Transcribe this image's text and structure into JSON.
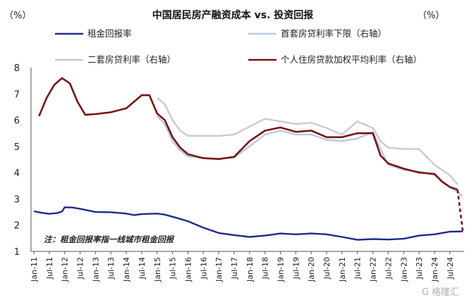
{
  "chart_data": {
    "type": "line",
    "title": "中国居民房产融资成本 vs. 投资回报",
    "left_unit": "（%）",
    "right_unit": "（%）",
    "ylim": [
      1,
      8
    ],
    "yticks": [
      1,
      2,
      3,
      4,
      5,
      6,
      7,
      8
    ],
    "xlim": [
      "2011-01",
      "2024-12"
    ],
    "xticks": [
      "Jan-11",
      "Jul-11",
      "Jan-12",
      "Jul-12",
      "Jan-13",
      "Jul-13",
      "Jan-14",
      "Jul-14",
      "Jan-15",
      "Jul-15",
      "Jan-16",
      "Jul-16",
      "Jan-17",
      "Jul-17",
      "Jan-18",
      "Jul-18",
      "Jan-19",
      "Jul-19",
      "Jan-20",
      "Jul-20",
      "Jan-21",
      "Jul-21",
      "Jan-22",
      "Jul-22",
      "Jan-23",
      "Jul-23",
      "Jan-24",
      "Jul-24"
    ],
    "note": "注：租金回报率指一线城市租金回报",
    "legend": [
      "租金回报率",
      "首套房贷利率下限（右轴）",
      "二套房贷利率（右轴）",
      "个人住房贷款加权平均利率（右轴）"
    ],
    "series": [
      {
        "name": "租金回报率",
        "color": "#1f2a8a",
        "dashed_tail": false,
        "points": [
          [
            "2011-01",
            2.53
          ],
          [
            "2011-04",
            2.47
          ],
          [
            "2011-07",
            2.43
          ],
          [
            "2011-10",
            2.46
          ],
          [
            "2011-12",
            2.52
          ],
          [
            "2012-01",
            2.68
          ],
          [
            "2012-04",
            2.67
          ],
          [
            "2012-07",
            2.62
          ],
          [
            "2012-10",
            2.56
          ],
          [
            "2013-01",
            2.5
          ],
          [
            "2013-07",
            2.49
          ],
          [
            "2014-01",
            2.44
          ],
          [
            "2014-04",
            2.38
          ],
          [
            "2014-07",
            2.42
          ],
          [
            "2015-01",
            2.44
          ],
          [
            "2015-04",
            2.4
          ],
          [
            "2015-07",
            2.32
          ],
          [
            "2016-01",
            2.15
          ],
          [
            "2016-07",
            1.9
          ],
          [
            "2017-01",
            1.7
          ],
          [
            "2017-07",
            1.62
          ],
          [
            "2018-01",
            1.55
          ],
          [
            "2018-07",
            1.6
          ],
          [
            "2019-01",
            1.68
          ],
          [
            "2019-07",
            1.65
          ],
          [
            "2020-01",
            1.68
          ],
          [
            "2020-07",
            1.65
          ],
          [
            "2021-01",
            1.55
          ],
          [
            "2021-07",
            1.44
          ],
          [
            "2022-01",
            1.47
          ],
          [
            "2022-07",
            1.45
          ],
          [
            "2023-01",
            1.48
          ],
          [
            "2023-07",
            1.6
          ],
          [
            "2024-01",
            1.65
          ],
          [
            "2024-07",
            1.75
          ],
          [
            "2024-12",
            1.76
          ]
        ]
      },
      {
        "name": "首套房贷利率下限（右轴）",
        "color": "#b9c9e4",
        "dashed_tail": false,
        "points": [
          [
            "2015-01",
            6.15
          ],
          [
            "2015-04",
            5.85
          ],
          [
            "2015-07",
            5.2
          ],
          [
            "2015-10",
            4.85
          ],
          [
            "2016-01",
            4.62
          ],
          [
            "2016-07",
            4.55
          ],
          [
            "2017-01",
            4.52
          ],
          [
            "2017-07",
            4.58
          ],
          [
            "2018-01",
            5.0
          ],
          [
            "2018-07",
            5.45
          ],
          [
            "2019-01",
            5.6
          ],
          [
            "2019-07",
            5.45
          ],
          [
            "2020-01",
            5.45
          ],
          [
            "2020-07",
            5.25
          ],
          [
            "2021-01",
            5.2
          ],
          [
            "2021-07",
            5.3
          ],
          [
            "2022-01",
            5.55
          ],
          [
            "2022-04",
            4.9
          ],
          [
            "2022-07",
            4.3
          ],
          [
            "2023-01",
            4.1
          ],
          [
            "2023-07",
            4.05
          ],
          [
            "2024-01",
            3.9
          ],
          [
            "2024-07",
            3.45
          ],
          [
            "2024-12",
            3.1
          ]
        ]
      },
      {
        "name": "二套房贷利率（右轴）",
        "color": "#c9c9d6",
        "dashed_tail": false,
        "points": [
          [
            "2015-01",
            6.85
          ],
          [
            "2015-04",
            6.6
          ],
          [
            "2015-07",
            6.0
          ],
          [
            "2015-10",
            5.6
          ],
          [
            "2016-01",
            5.4
          ],
          [
            "2016-07",
            5.4
          ],
          [
            "2017-01",
            5.4
          ],
          [
            "2017-07",
            5.45
          ],
          [
            "2018-01",
            5.75
          ],
          [
            "2018-07",
            6.05
          ],
          [
            "2019-01",
            5.95
          ],
          [
            "2019-07",
            5.85
          ],
          [
            "2020-01",
            5.9
          ],
          [
            "2020-07",
            5.7
          ],
          [
            "2021-01",
            5.45
          ],
          [
            "2021-07",
            5.95
          ],
          [
            "2022-01",
            5.7
          ],
          [
            "2022-04",
            5.2
          ],
          [
            "2022-07",
            4.95
          ],
          [
            "2023-01",
            4.9
          ],
          [
            "2023-07",
            4.9
          ],
          [
            "2024-01",
            4.3
          ],
          [
            "2024-07",
            3.9
          ],
          [
            "2024-10",
            3.55
          ]
        ]
      },
      {
        "name": "个人住房贷款加权平均利率（右轴）",
        "color": "#7a1313",
        "dashed_tail": true,
        "tail_from": "2024-10",
        "points": [
          [
            "2011-03",
            6.15
          ],
          [
            "2011-06",
            6.85
          ],
          [
            "2011-09",
            7.35
          ],
          [
            "2011-12",
            7.6
          ],
          [
            "2012-03",
            7.4
          ],
          [
            "2012-06",
            6.7
          ],
          [
            "2012-09",
            6.2
          ],
          [
            "2013-01",
            6.23
          ],
          [
            "2013-07",
            6.3
          ],
          [
            "2014-01",
            6.45
          ],
          [
            "2014-04",
            6.7
          ],
          [
            "2014-07",
            6.95
          ],
          [
            "2014-10",
            6.95
          ],
          [
            "2015-01",
            6.25
          ],
          [
            "2015-04",
            6.0
          ],
          [
            "2015-07",
            5.35
          ],
          [
            "2015-10",
            4.95
          ],
          [
            "2016-01",
            4.7
          ],
          [
            "2016-07",
            4.55
          ],
          [
            "2017-01",
            4.52
          ],
          [
            "2017-07",
            4.6
          ],
          [
            "2018-01",
            5.2
          ],
          [
            "2018-07",
            5.6
          ],
          [
            "2019-01",
            5.72
          ],
          [
            "2019-07",
            5.55
          ],
          [
            "2020-01",
            5.6
          ],
          [
            "2020-07",
            5.35
          ],
          [
            "2021-01",
            5.35
          ],
          [
            "2021-07",
            5.5
          ],
          [
            "2022-01",
            5.5
          ],
          [
            "2022-04",
            4.65
          ],
          [
            "2022-07",
            4.35
          ],
          [
            "2023-01",
            4.15
          ],
          [
            "2023-07",
            4.0
          ],
          [
            "2024-01",
            3.95
          ],
          [
            "2024-04",
            3.65
          ],
          [
            "2024-07",
            3.45
          ],
          [
            "2024-10",
            3.35
          ],
          [
            "2024-12",
            1.78
          ]
        ]
      }
    ]
  }
}
